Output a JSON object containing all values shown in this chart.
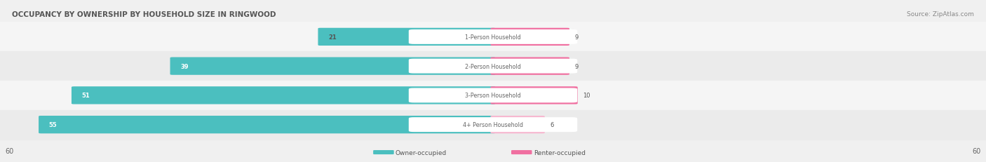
{
  "title": "OCCUPANCY BY OWNERSHIP BY HOUSEHOLD SIZE IN RINGWOOD",
  "source": "Source: ZipAtlas.com",
  "categories": [
    "1-Person Household",
    "2-Person Household",
    "3-Person Household",
    "4+ Person Household"
  ],
  "owner_values": [
    21,
    39,
    51,
    55
  ],
  "renter_values": [
    9,
    9,
    10,
    6
  ],
  "max_scale": 60,
  "owner_color": "#4bbfbf",
  "renter_color": "#f06fa0",
  "renter_4plus_color": "#f7b8d0",
  "bg_color": "#f0f0f0",
  "bar_bg_color": "#ffffff",
  "row_bg_odd": "#f5f5f5",
  "row_bg_even": "#ebebeb",
  "title_color": "#555555",
  "label_color": "#555555",
  "legend_owner": "Owner-occupied",
  "legend_renter": "Renter-occupied"
}
